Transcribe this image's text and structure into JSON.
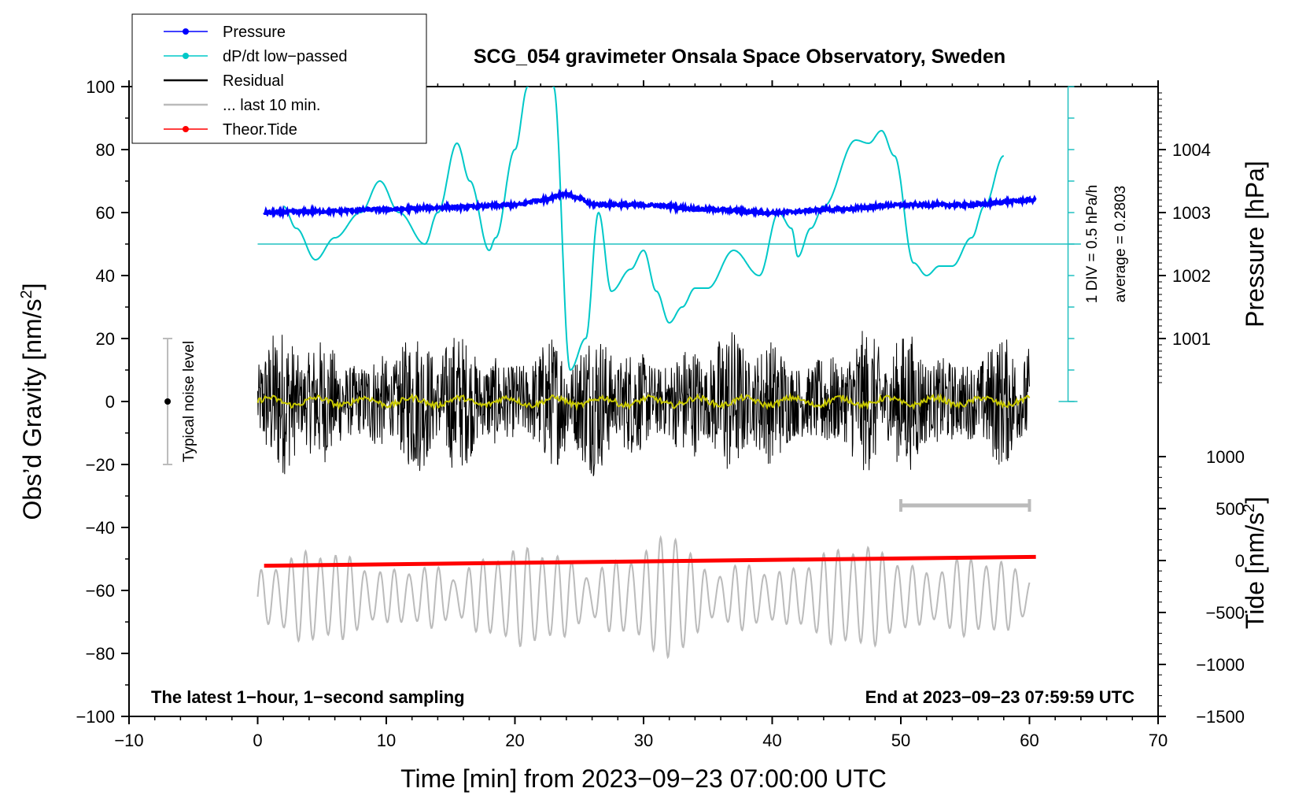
{
  "chart_data": {
    "type": "line",
    "title": "SCG_054 gravimeter Onsala Space Observatory, Sweden",
    "xlabel": "Time [min] from 2023−09−23 07:00:00 UTC",
    "ylabel_left": "Obs’d Gravity [nm/s",
    "ylabel_left_sup": "2",
    "ylabel_left_end": "]",
    "ylabel_right_pressure": "Pressure [hPa]",
    "ylabel_right_tide": "Tide [nm/s",
    "ylabel_right_tide_sup": "2",
    "ylabel_right_tide_end": "]",
    "xlim": [
      -10,
      70
    ],
    "ylim": [
      -100,
      100
    ],
    "x_ticks": [
      "−10",
      "0",
      "10",
      "20",
      "30",
      "40",
      "50",
      "60",
      "70"
    ],
    "y_ticks": [
      "100",
      "80",
      "60",
      "40",
      "20",
      "0",
      "−20",
      "−40",
      "−60",
      "−80",
      "−100"
    ],
    "pressure_ticks": [
      "1004",
      "1003",
      "1002",
      "1001"
    ],
    "pressure_tick_values": [
      1004,
      1003,
      1002,
      1001
    ],
    "pressure_range": [
      1000.3,
      1005
    ],
    "tide_ticks": [
      "1000",
      "500",
      "0",
      "−500",
      "−1000",
      "−1500"
    ],
    "tide_tick_values": [
      1000,
      500,
      0,
      -500,
      -1000,
      -1500
    ],
    "tide_range": [
      -1500,
      1000
    ],
    "footer_left": "The latest 1−hour, 1−second sampling",
    "footer_right": "End at 2023−09−23 07:59:59 UTC",
    "noise_label": "Typical noise level",
    "noise_bar": {
      "x": -7,
      "y": 0,
      "low": -20,
      "high": 20
    },
    "ten_min_bar": {
      "x_start": 50,
      "x_end": 60,
      "y": -33
    },
    "dpdt_scale_label": "1 DIV = 0.5 hPa/h",
    "dpdt_average_label": "average = 0.2803",
    "dpdt_zero_line_y": 50,
    "legend": [
      {
        "label": "Pressure",
        "color": "#0000ff",
        "marker": true
      },
      {
        "label": "dP/dt low−passed",
        "color": "#00c8c8",
        "marker": true
      },
      {
        "label": "Residual",
        "color": "#000000",
        "marker": false
      },
      {
        "label": "... last 10 min.",
        "color": "#bbbbbb",
        "marker": false
      },
      {
        "label": "Theor.Tide",
        "color": "#ff0000",
        "marker": true
      }
    ],
    "series": [
      {
        "name": "Pressure",
        "color": "#0000ff",
        "unit": "hPa",
        "x": [
          0.5,
          5,
          10,
          15,
          20,
          22,
          24,
          25,
          26,
          30,
          35,
          40,
          45,
          50,
          55,
          60.5
        ],
        "values": [
          1003.0,
          1003.02,
          1003.05,
          1003.08,
          1003.12,
          1003.2,
          1003.3,
          1003.22,
          1003.13,
          1003.12,
          1003.05,
          1003.0,
          1003.05,
          1003.12,
          1003.12,
          1003.2
        ]
      },
      {
        "name": "dP/dt low−passed",
        "color": "#00c8c8",
        "unit": "nm/s²-axis units",
        "x": [
          2,
          3,
          4.5,
          6,
          8,
          9.5,
          11,
          13,
          14,
          15.5,
          16.5,
          18,
          18.5,
          20,
          21,
          22,
          23,
          24.3,
          25.5,
          26.5,
          27.5,
          29,
          30,
          31,
          32,
          33,
          34,
          35,
          37,
          39,
          40.5,
          41.5,
          42,
          43,
          44,
          46.5,
          47.5,
          48.5,
          49.5,
          51,
          52,
          53,
          54,
          55.5,
          56.5,
          58
        ],
        "values": [
          62,
          55,
          45,
          52,
          60,
          70,
          60,
          50,
          60,
          82,
          70,
          48,
          52,
          80,
          100,
          110,
          100,
          10,
          20,
          60,
          35,
          42,
          48,
          35,
          25,
          30,
          36,
          36,
          48,
          40,
          60,
          55,
          46,
          55,
          62,
          83,
          82,
          86,
          78,
          44,
          40,
          43,
          43,
          52,
          62,
          78
        ]
      },
      {
        "name": "Residual",
        "color": "#000000",
        "x_range": [
          0,
          60
        ],
        "amplitude": 24
      },
      {
        "name": "Residual low-passed",
        "color": "#c8c800",
        "x_range": [
          0,
          60
        ],
        "amplitude": 2
      },
      {
        "name": "... last 10 min.",
        "color": "#bbbbbb",
        "x_range": [
          0,
          60
        ],
        "center": -62,
        "amplitude": 12
      },
      {
        "name": "Theor.Tide",
        "color": "#ff0000",
        "unit": "nm/s²",
        "x": [
          0.5,
          60.5
        ],
        "values": [
          -50,
          35
        ]
      }
    ]
  }
}
